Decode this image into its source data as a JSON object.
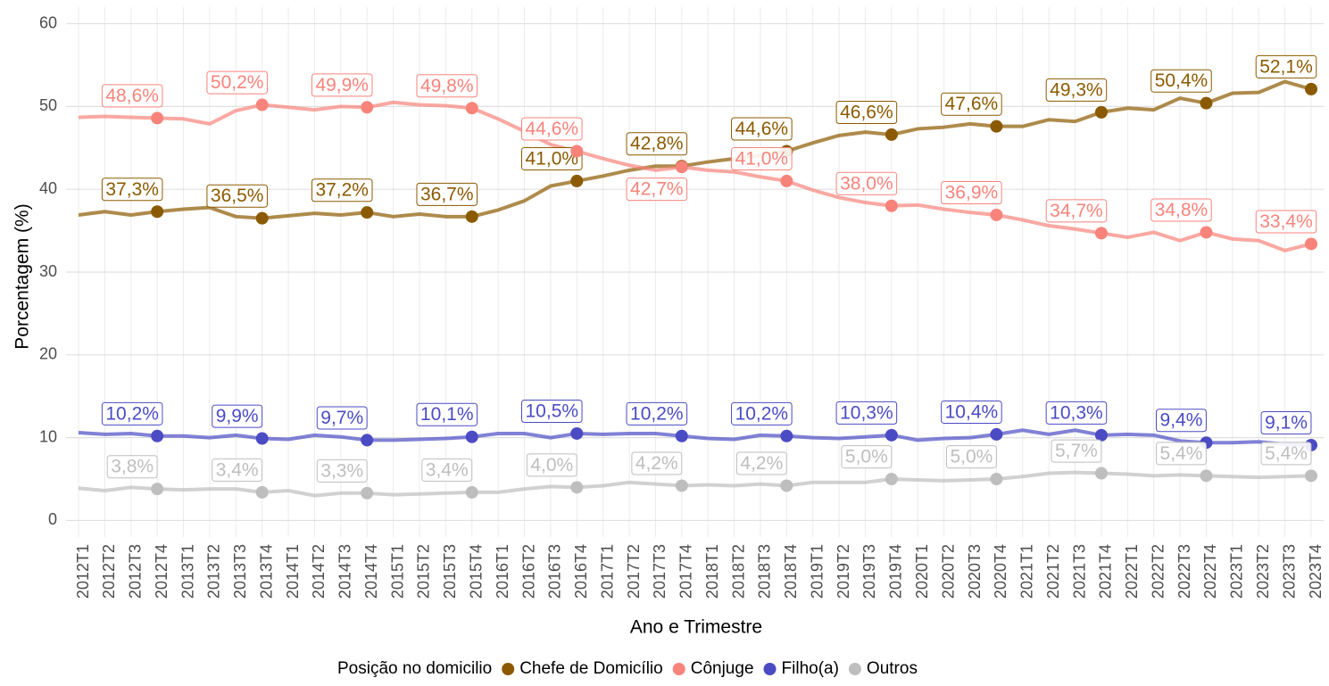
{
  "chart_data": {
    "type": "line",
    "x_label": "Ano e Trimestre",
    "y_label": "Porcentagem (%)",
    "legend_title": "Posição no domicilio",
    "legend": "bottom",
    "grid": true,
    "ylim": [
      -2,
      62
    ],
    "yticks": [
      0,
      10,
      20,
      30,
      40,
      50,
      60
    ],
    "categories": [
      "2012T1",
      "2012T2",
      "2012T3",
      "2012T4",
      "2013T1",
      "2013T2",
      "2013T3",
      "2013T4",
      "2014T1",
      "2014T2",
      "2014T3",
      "2014T4",
      "2015T1",
      "2015T2",
      "2015T3",
      "2015T4",
      "2016T1",
      "2016T2",
      "2016T3",
      "2016T4",
      "2017T1",
      "2017T2",
      "2017T3",
      "2017T4",
      "2018T1",
      "2018T2",
      "2018T3",
      "2018T4",
      "2019T1",
      "2019T2",
      "2019T3",
      "2019T4",
      "2020T1",
      "2020T2",
      "2020T3",
      "2020T4",
      "2021T1",
      "2021T2",
      "2021T3",
      "2021T4",
      "2022T1",
      "2022T2",
      "2022T3",
      "2022T4",
      "2023T1",
      "2023T2",
      "2023T3",
      "2023T4"
    ],
    "series": [
      {
        "name": "Chefe de Domicílio",
        "color": "#8b5a00",
        "values": [
          36.9,
          37.3,
          36.9,
          37.3,
          37.6,
          37.8,
          36.7,
          36.5,
          36.8,
          37.1,
          36.9,
          37.2,
          36.7,
          37.0,
          36.7,
          36.7,
          37.5,
          38.6,
          40.4,
          41.0,
          41.6,
          42.3,
          42.8,
          42.8,
          43.3,
          43.7,
          44.1,
          44.6,
          45.6,
          46.5,
          46.9,
          46.6,
          47.3,
          47.5,
          47.9,
          47.6,
          47.6,
          48.4,
          48.2,
          49.3,
          49.8,
          49.6,
          51.0,
          50.4,
          51.6,
          51.7,
          53.0,
          52.1
        ],
        "value_labels": [
          null,
          null,
          null,
          "37,3%",
          null,
          null,
          null,
          "36,5%",
          null,
          null,
          null,
          "37,2%",
          null,
          null,
          null,
          "36,7%",
          null,
          null,
          null,
          "41,0%",
          null,
          null,
          null,
          "42,8%",
          null,
          null,
          null,
          "44,6%",
          null,
          null,
          null,
          "46,6%",
          null,
          null,
          null,
          "47,6%",
          null,
          null,
          null,
          "49,3%",
          null,
          null,
          null,
          "50,4%",
          null,
          null,
          null,
          "52,1%"
        ]
      },
      {
        "name": "Cônjuge",
        "color": "#f8837b",
        "values": [
          48.7,
          48.8,
          48.7,
          48.6,
          48.5,
          47.9,
          49.5,
          50.2,
          49.9,
          49.6,
          50.0,
          49.9,
          50.5,
          50.2,
          50.1,
          49.8,
          48.5,
          47.0,
          45.4,
          44.6,
          43.7,
          42.9,
          42.3,
          42.7,
          42.3,
          42.1,
          41.5,
          41.0,
          39.9,
          39.0,
          38.4,
          38.0,
          38.1,
          37.6,
          37.2,
          36.9,
          36.3,
          35.6,
          35.2,
          34.7,
          34.2,
          34.8,
          33.8,
          34.8,
          34.0,
          33.8,
          32.6,
          33.4
        ],
        "value_labels": [
          null,
          null,
          null,
          "48,6%",
          null,
          null,
          null,
          "50,2%",
          null,
          null,
          null,
          "49,9%",
          null,
          null,
          null,
          "49,8%",
          null,
          null,
          null,
          "44,6%",
          null,
          null,
          null,
          "42,7%",
          null,
          null,
          null,
          "41,0%",
          null,
          null,
          null,
          "38,0%",
          null,
          null,
          null,
          "36,9%",
          null,
          null,
          null,
          "34,7%",
          null,
          null,
          null,
          "34,8%",
          null,
          null,
          null,
          "33,4%"
        ]
      },
      {
        "name": "Filho(a)",
        "color": "#4b4bc4",
        "values": [
          10.6,
          10.4,
          10.5,
          10.2,
          10.2,
          10.0,
          10.3,
          9.9,
          9.8,
          10.3,
          10.1,
          9.7,
          9.7,
          9.8,
          9.9,
          10.1,
          10.5,
          10.5,
          10.0,
          10.5,
          10.4,
          10.5,
          10.5,
          10.2,
          9.9,
          9.8,
          10.3,
          10.2,
          10.0,
          9.9,
          10.1,
          10.3,
          9.7,
          9.9,
          10.0,
          10.4,
          10.9,
          10.4,
          10.9,
          10.3,
          10.4,
          10.3,
          9.6,
          9.4,
          9.4,
          9.5,
          9.2,
          9.1
        ],
        "value_labels": [
          null,
          null,
          null,
          "10,2%",
          null,
          null,
          null,
          "9,9%",
          null,
          null,
          null,
          "9,7%",
          null,
          null,
          null,
          "10,1%",
          null,
          null,
          null,
          "10,5%",
          null,
          null,
          null,
          "10,2%",
          null,
          null,
          null,
          "10,2%",
          null,
          null,
          null,
          "10,3%",
          null,
          null,
          null,
          "10,4%",
          null,
          null,
          null,
          "10,3%",
          null,
          null,
          null,
          "9,4%",
          null,
          null,
          null,
          "9,1%"
        ]
      },
      {
        "name": "Outros",
        "color": "#bebebe",
        "values": [
          3.9,
          3.6,
          4.0,
          3.8,
          3.7,
          3.8,
          3.8,
          3.4,
          3.6,
          3.0,
          3.3,
          3.3,
          3.1,
          3.2,
          3.3,
          3.4,
          3.4,
          3.8,
          4.1,
          4.0,
          4.2,
          4.6,
          4.4,
          4.2,
          4.3,
          4.2,
          4.4,
          4.2,
          4.6,
          4.6,
          4.6,
          5.0,
          4.9,
          4.8,
          4.9,
          5.0,
          5.3,
          5.7,
          5.8,
          5.7,
          5.6,
          5.4,
          5.5,
          5.4,
          5.3,
          5.2,
          5.3,
          5.4
        ],
        "value_labels": [
          null,
          null,
          null,
          "3,8%",
          null,
          null,
          null,
          "3,4%",
          null,
          null,
          null,
          "3,3%",
          null,
          null,
          null,
          "3,4%",
          null,
          null,
          null,
          "4,0%",
          null,
          null,
          null,
          "4,2%",
          null,
          null,
          null,
          "4,2%",
          null,
          null,
          null,
          "5,0%",
          null,
          null,
          null,
          "5,0%",
          null,
          null,
          null,
          "5,7%",
          null,
          null,
          null,
          "5,4%",
          null,
          null,
          null,
          "5,4%"
        ]
      }
    ]
  }
}
